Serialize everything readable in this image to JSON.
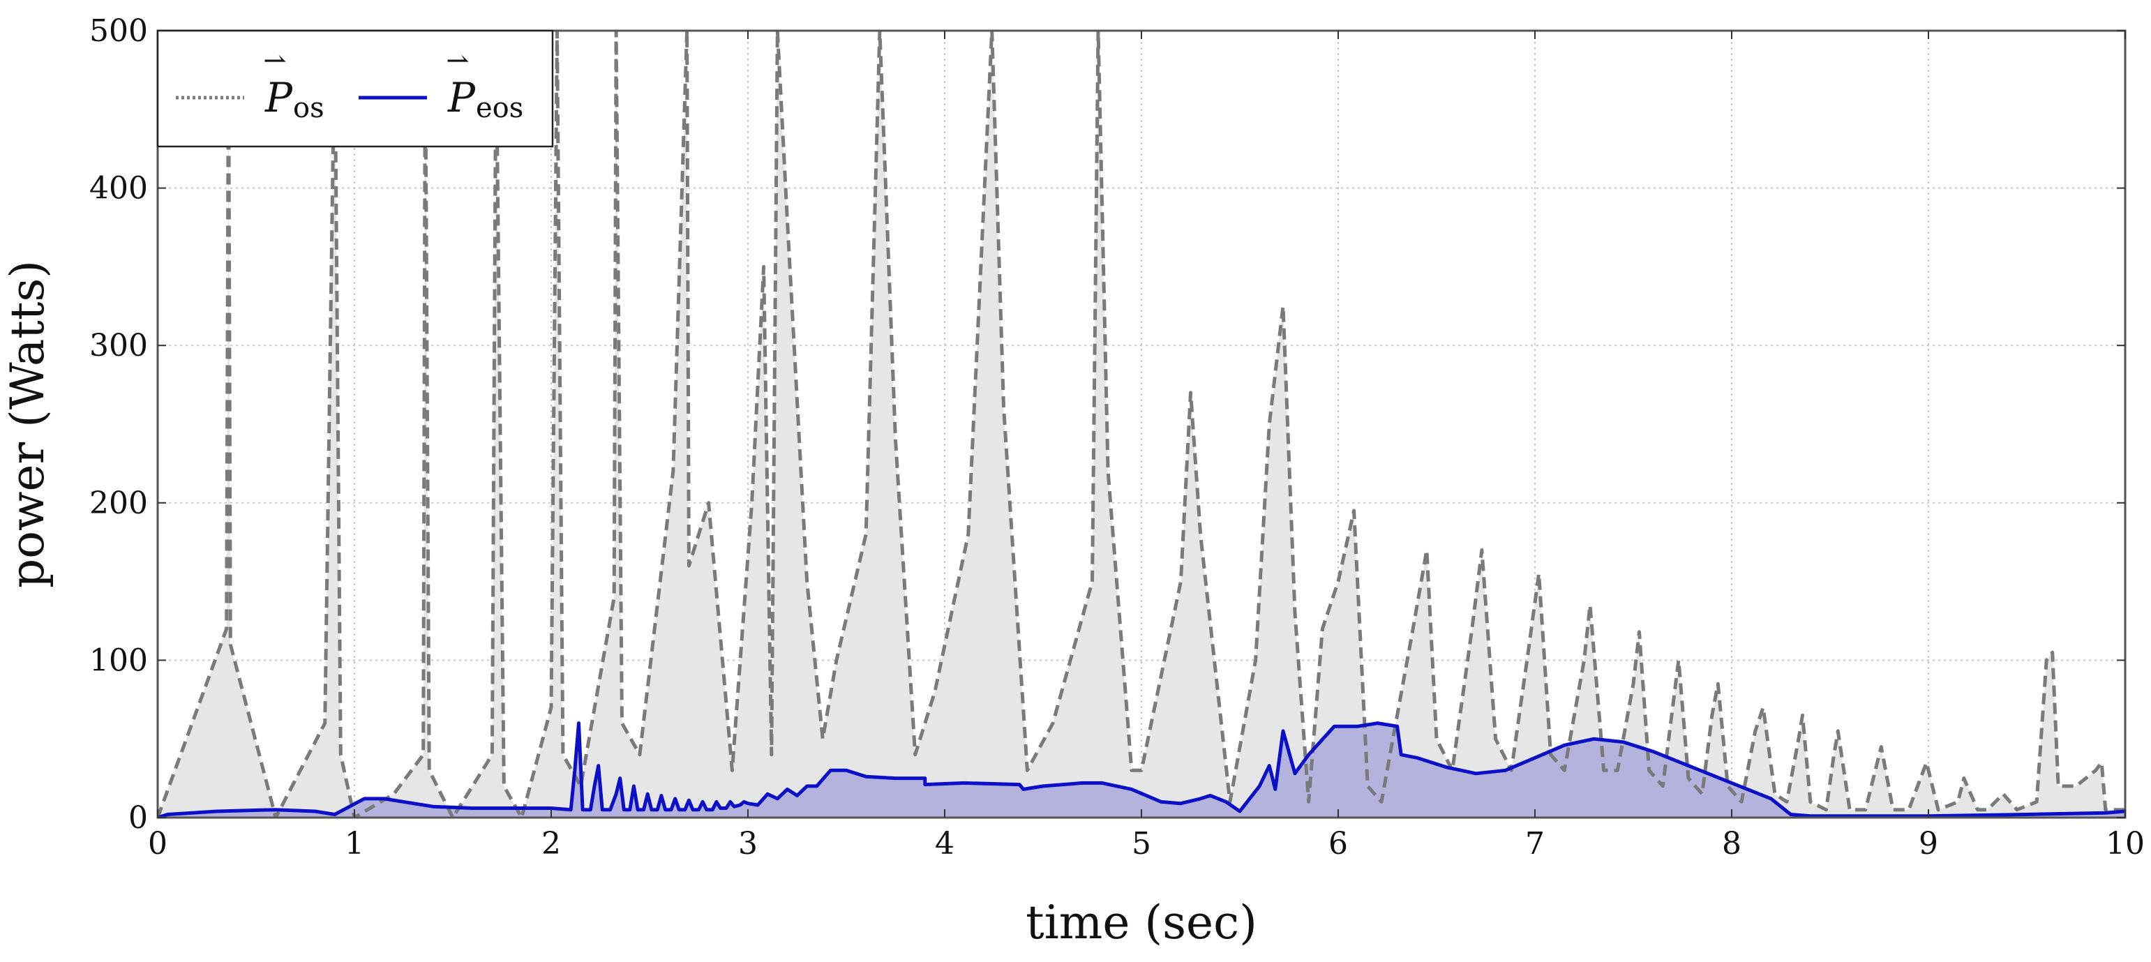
{
  "chart_data": {
    "type": "line",
    "xlabel": "time (sec)",
    "ylabel": "power (Watts)",
    "xlim": [
      0,
      10
    ],
    "ylim": [
      0,
      500
    ],
    "x_ticks": [
      "0",
      "1",
      "2",
      "3",
      "4",
      "5",
      "6",
      "7",
      "8",
      "9",
      "10"
    ],
    "y_ticks": [
      "0",
      "100",
      "200",
      "300",
      "400",
      "500"
    ],
    "grid": true,
    "legend_position": "top-left",
    "colors": {
      "os_line": "#7a7a7a",
      "os_fill": "#e6e6e6",
      "eos_line": "#0b10c8",
      "eos_fill": "#b4b3dd"
    },
    "series": [
      {
        "name": "P_os",
        "legend": {
          "symbol": "P",
          "subscript": "os"
        },
        "style": "dashed",
        "points": [
          [
            0,
            0
          ],
          [
            0.35,
            120
          ],
          [
            0.36,
            500
          ],
          [
            0.37,
            110
          ],
          [
            0.6,
            0
          ],
          [
            0.85,
            60
          ],
          [
            0.9,
            500
          ],
          [
            0.93,
            40
          ],
          [
            1.0,
            0
          ],
          [
            1.2,
            15
          ],
          [
            1.35,
            40
          ],
          [
            1.36,
            500
          ],
          [
            1.38,
            30
          ],
          [
            1.5,
            0
          ],
          [
            1.7,
            40
          ],
          [
            1.72,
            500
          ],
          [
            1.76,
            20
          ],
          [
            1.85,
            0
          ],
          [
            2.0,
            70
          ],
          [
            2.03,
            500
          ],
          [
            2.06,
            40
          ],
          [
            2.15,
            20
          ],
          [
            2.32,
            140
          ],
          [
            2.33,
            500
          ],
          [
            2.36,
            60
          ],
          [
            2.45,
            40
          ],
          [
            2.62,
            220
          ],
          [
            2.69,
            500
          ],
          [
            2.7,
            160
          ],
          [
            2.8,
            200
          ],
          [
            2.92,
            30
          ],
          [
            3.02,
            200
          ],
          [
            3.08,
            350
          ],
          [
            3.12,
            40
          ],
          [
            3.15,
            500
          ],
          [
            3.2,
            380
          ],
          [
            3.3,
            150
          ],
          [
            3.38,
            50
          ],
          [
            3.45,
            100
          ],
          [
            3.6,
            180
          ],
          [
            3.67,
            500
          ],
          [
            3.75,
            240
          ],
          [
            3.85,
            40
          ],
          [
            3.95,
            80
          ],
          [
            4.12,
            180
          ],
          [
            4.24,
            500
          ],
          [
            4.3,
            260
          ],
          [
            4.42,
            30
          ],
          [
            4.55,
            60
          ],
          [
            4.75,
            150
          ],
          [
            4.78,
            500
          ],
          [
            4.83,
            220
          ],
          [
            4.95,
            30
          ],
          [
            5.0,
            30
          ],
          [
            5.2,
            150
          ],
          [
            5.25,
            270
          ],
          [
            5.3,
            180
          ],
          [
            5.45,
            10
          ],
          [
            5.58,
            100
          ],
          [
            5.65,
            250
          ],
          [
            5.72,
            325
          ],
          [
            5.78,
            130
          ],
          [
            5.85,
            10
          ],
          [
            5.92,
            120
          ],
          [
            6.0,
            150
          ],
          [
            6.08,
            195
          ],
          [
            6.15,
            20
          ],
          [
            6.22,
            10
          ],
          [
            6.38,
            120
          ],
          [
            6.45,
            170
          ],
          [
            6.5,
            50
          ],
          [
            6.58,
            30
          ],
          [
            6.68,
            120
          ],
          [
            6.73,
            170
          ],
          [
            6.8,
            50
          ],
          [
            6.88,
            30
          ],
          [
            6.96,
            100
          ],
          [
            7.02,
            155
          ],
          [
            7.08,
            40
          ],
          [
            7.15,
            30
          ],
          [
            7.25,
            100
          ],
          [
            7.28,
            135
          ],
          [
            7.35,
            30
          ],
          [
            7.42,
            30
          ],
          [
            7.5,
            85
          ],
          [
            7.53,
            118
          ],
          [
            7.58,
            30
          ],
          [
            7.65,
            20
          ],
          [
            7.7,
            70
          ],
          [
            7.73,
            100
          ],
          [
            7.78,
            25
          ],
          [
            7.85,
            15
          ],
          [
            7.9,
            65
          ],
          [
            7.93,
            85
          ],
          [
            7.98,
            20
          ],
          [
            8.05,
            10
          ],
          [
            8.12,
            55
          ],
          [
            8.16,
            70
          ],
          [
            8.22,
            15
          ],
          [
            8.28,
            10
          ],
          [
            8.34,
            50
          ],
          [
            8.36,
            65
          ],
          [
            8.4,
            10
          ],
          [
            8.48,
            5
          ],
          [
            8.52,
            40
          ],
          [
            8.54,
            55
          ],
          [
            8.6,
            5
          ],
          [
            8.68,
            5
          ],
          [
            8.74,
            35
          ],
          [
            8.76,
            45
          ],
          [
            8.82,
            5
          ],
          [
            8.9,
            5
          ],
          [
            8.96,
            25
          ],
          [
            8.99,
            35
          ],
          [
            9.05,
            5
          ],
          [
            9.15,
            10
          ],
          [
            9.18,
            25
          ],
          [
            9.25,
            5
          ],
          [
            9.3,
            5
          ],
          [
            9.38,
            15
          ],
          [
            9.45,
            5
          ],
          [
            9.55,
            10
          ],
          [
            9.6,
            100
          ],
          [
            9.63,
            105
          ],
          [
            9.66,
            20
          ],
          [
            9.75,
            20
          ],
          [
            9.8,
            25
          ],
          [
            9.85,
            30
          ],
          [
            9.88,
            35
          ],
          [
            9.9,
            5
          ],
          [
            9.95,
            5
          ],
          [
            10.0,
            5
          ]
        ]
      },
      {
        "name": "P_eos",
        "legend": {
          "symbol": "P",
          "subscript": "eos"
        },
        "style": "solid",
        "points": [
          [
            0,
            0
          ],
          [
            0.05,
            2
          ],
          [
            0.3,
            4
          ],
          [
            0.6,
            5
          ],
          [
            0.8,
            4
          ],
          [
            0.9,
            2
          ],
          [
            1.05,
            12
          ],
          [
            1.15,
            12
          ],
          [
            1.4,
            7
          ],
          [
            1.6,
            6
          ],
          [
            2.0,
            6
          ],
          [
            2.1,
            5
          ],
          [
            2.12,
            30
          ],
          [
            2.14,
            60
          ],
          [
            2.16,
            5
          ],
          [
            2.2,
            5
          ],
          [
            2.22,
            20
          ],
          [
            2.24,
            33
          ],
          [
            2.26,
            5
          ],
          [
            2.3,
            5
          ],
          [
            2.33,
            15
          ],
          [
            2.35,
            25
          ],
          [
            2.37,
            5
          ],
          [
            2.4,
            5
          ],
          [
            2.42,
            20
          ],
          [
            2.44,
            5
          ],
          [
            2.47,
            5
          ],
          [
            2.49,
            15
          ],
          [
            2.51,
            5
          ],
          [
            2.54,
            5
          ],
          [
            2.56,
            14
          ],
          [
            2.58,
            5
          ],
          [
            2.61,
            5
          ],
          [
            2.63,
            12
          ],
          [
            2.65,
            5
          ],
          [
            2.68,
            5
          ],
          [
            2.7,
            11
          ],
          [
            2.72,
            5
          ],
          [
            2.75,
            5
          ],
          [
            2.77,
            10
          ],
          [
            2.79,
            5
          ],
          [
            2.82,
            5
          ],
          [
            2.84,
            10
          ],
          [
            2.86,
            6
          ],
          [
            2.89,
            6
          ],
          [
            2.91,
            10
          ],
          [
            2.93,
            7
          ],
          [
            2.96,
            8
          ],
          [
            2.98,
            10
          ],
          [
            3.0,
            9
          ],
          [
            3.05,
            8
          ],
          [
            3.1,
            15
          ],
          [
            3.15,
            12
          ],
          [
            3.2,
            18
          ],
          [
            3.25,
            14
          ],
          [
            3.3,
            20
          ],
          [
            3.35,
            20
          ],
          [
            3.42,
            30
          ],
          [
            3.5,
            30
          ],
          [
            3.6,
            26
          ],
          [
            3.75,
            25
          ],
          [
            3.9,
            25
          ],
          [
            3.9,
            21
          ],
          [
            4.1,
            22
          ],
          [
            4.38,
            21
          ],
          [
            4.4,
            18
          ],
          [
            4.5,
            20
          ],
          [
            4.7,
            22
          ],
          [
            4.8,
            22
          ],
          [
            4.95,
            18
          ],
          [
            5.1,
            10
          ],
          [
            5.2,
            9
          ],
          [
            5.3,
            12
          ],
          [
            5.35,
            14
          ],
          [
            5.43,
            10
          ],
          [
            5.5,
            4
          ],
          [
            5.6,
            20
          ],
          [
            5.65,
            33
          ],
          [
            5.68,
            18
          ],
          [
            5.72,
            55
          ],
          [
            5.78,
            28
          ],
          [
            5.85,
            40
          ],
          [
            5.98,
            58
          ],
          [
            6.1,
            58
          ],
          [
            6.2,
            60
          ],
          [
            6.3,
            58
          ],
          [
            6.32,
            40
          ],
          [
            6.4,
            38
          ],
          [
            6.55,
            32
          ],
          [
            6.7,
            28
          ],
          [
            6.85,
            30
          ],
          [
            7.0,
            38
          ],
          [
            7.15,
            46
          ],
          [
            7.3,
            50
          ],
          [
            7.45,
            48
          ],
          [
            7.6,
            42
          ],
          [
            7.8,
            32
          ],
          [
            8.0,
            22
          ],
          [
            8.2,
            12
          ],
          [
            8.3,
            2
          ],
          [
            8.4,
            1
          ],
          [
            9.0,
            1
          ],
          [
            9.5,
            2
          ],
          [
            9.9,
            3
          ],
          [
            10.0,
            4
          ]
        ]
      }
    ]
  }
}
